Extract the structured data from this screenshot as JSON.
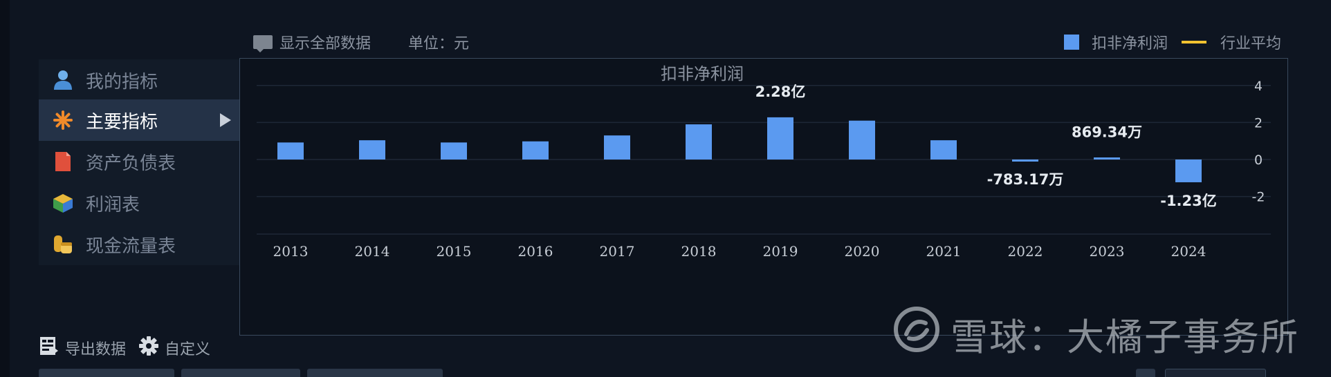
{
  "toolbar": {
    "show_all_label": "显示全部数据",
    "unit_label": "单位：元"
  },
  "legend": {
    "series_label": "扣非净利润",
    "avg_label": "行业平均"
  },
  "sidebar": {
    "items": [
      {
        "label": "我的指标",
        "icon": "user-icon",
        "active": false
      },
      {
        "label": "主要指标",
        "icon": "star-icon",
        "active": true
      },
      {
        "label": "资产负债表",
        "icon": "document-icon",
        "active": false
      },
      {
        "label": "利润表",
        "icon": "pie-icon",
        "active": false
      },
      {
        "label": "现金流量表",
        "icon": "coins-icon",
        "active": false
      }
    ]
  },
  "bottom": {
    "export_label": "导出数据",
    "custom_label": "自定义"
  },
  "watermark": {
    "text": "雪球：大橘子事务所"
  },
  "colors": {
    "bar": "#5b9af0",
    "avg_line": "#f2c230",
    "grid": "#1e2836",
    "text": "#c8ced6"
  },
  "chart_data": {
    "type": "bar",
    "title": "扣非净利润",
    "categories": [
      "2013",
      "2014",
      "2015",
      "2016",
      "2017",
      "2018",
      "2019",
      "2020",
      "2021",
      "2022",
      "2023",
      "2024"
    ],
    "series": [
      {
        "name": "扣非净利润",
        "values": [
          0.92,
          1.04,
          0.92,
          0.98,
          1.3,
          1.9,
          2.28,
          2.1,
          1.04,
          -0.0783,
          0.0869,
          -1.23
        ]
      }
    ],
    "value_unit": "亿",
    "y_ticks": [
      "4",
      "2",
      "0",
      "-2"
    ],
    "ylim": [
      -4,
      4
    ],
    "data_labels": [
      {
        "index": 6,
        "text": "2.28亿",
        "position": "above"
      },
      {
        "index": 9,
        "text": "-783.17万",
        "position": "below"
      },
      {
        "index": 10,
        "text": "869.34万",
        "position": "above"
      },
      {
        "index": 11,
        "text": "-1.23亿",
        "position": "below"
      }
    ],
    "grid": true,
    "legend_position": "top-right"
  }
}
